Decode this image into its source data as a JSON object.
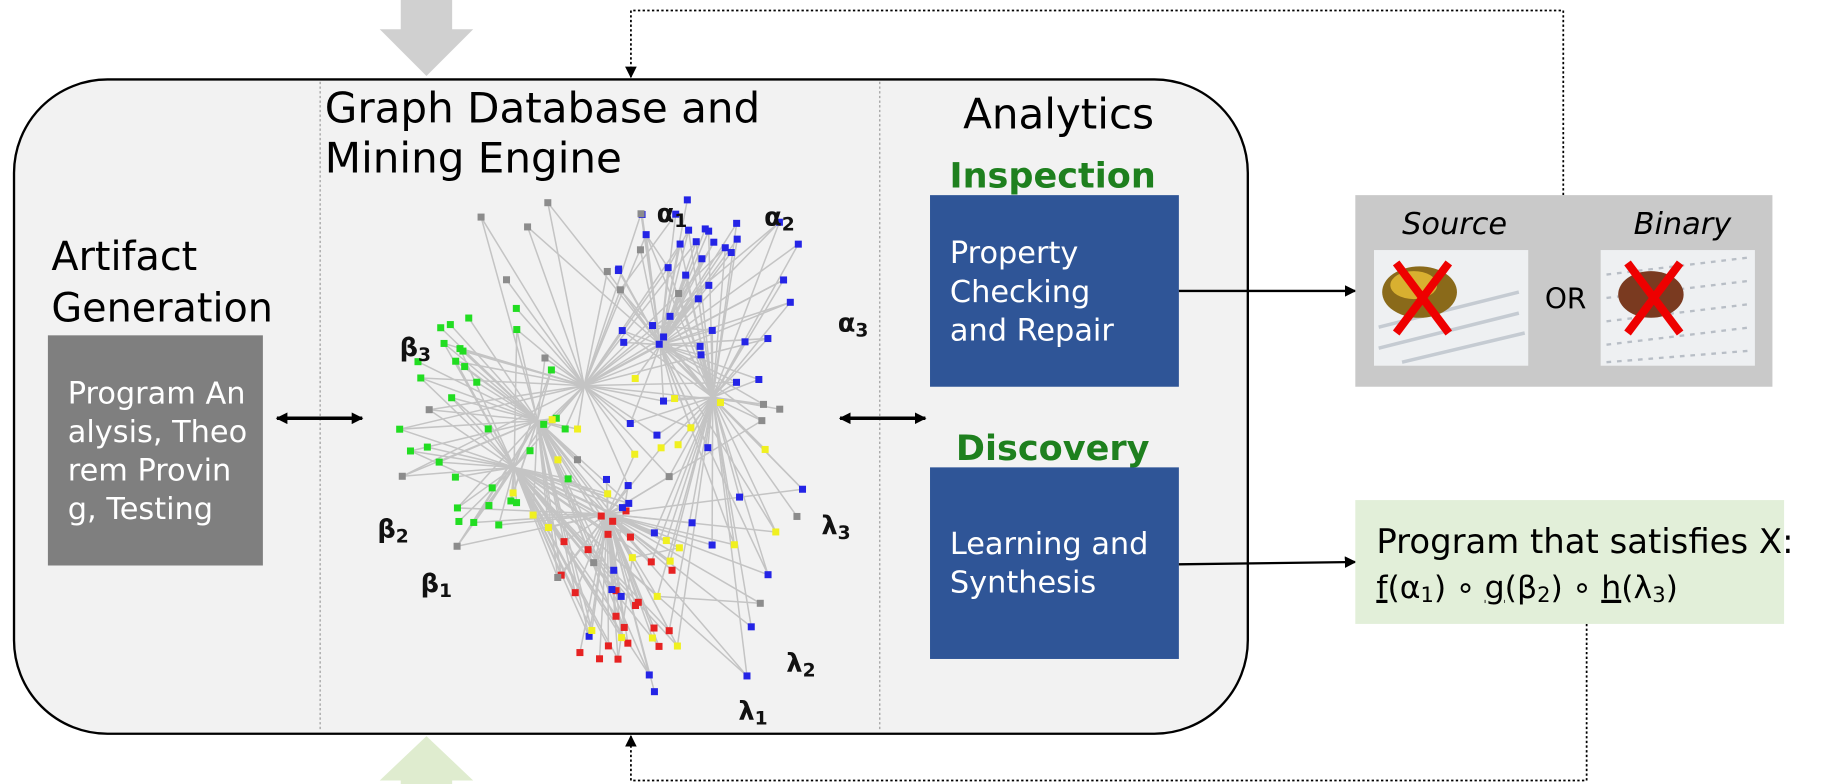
{
  "artifact_generation": {
    "title": [
      "Artifact",
      "Generation"
    ],
    "box_lines": [
      "Program An",
      "alysis, Theo",
      "rem Provin",
      "g, Testing"
    ]
  },
  "graph_engine": {
    "title": [
      "Graph Database and",
      "Mining Engine"
    ],
    "labels": [
      {
        "symbol": "α",
        "sub": "1"
      },
      {
        "symbol": "α",
        "sub": "2"
      },
      {
        "symbol": "α",
        "sub": "3"
      },
      {
        "symbol": "β",
        "sub": "3"
      },
      {
        "symbol": "β",
        "sub": "2"
      },
      {
        "symbol": "β",
        "sub": "1"
      },
      {
        "symbol": "λ",
        "sub": "3"
      },
      {
        "symbol": "λ",
        "sub": "2"
      },
      {
        "symbol": "λ",
        "sub": "1"
      }
    ]
  },
  "analytics": {
    "title": "Analytics",
    "inspection": {
      "heading": "Inspection",
      "box_lines": [
        "Property",
        "Checking",
        "and Repair"
      ]
    },
    "discovery": {
      "heading": "Discovery",
      "box_lines": [
        "Learning and",
        "Synthesis"
      ]
    }
  },
  "inspection_output": {
    "source": "Source",
    "or": "OR",
    "binary": "Binary"
  },
  "discovery_output": {
    "line1": "Program that satisfies X:",
    "formula": {
      "operator": "∘",
      "terms": [
        {
          "fn": "f",
          "arg": "(α",
          "sub": "1",
          "close": ")"
        },
        {
          "fn": "g",
          "arg": "(β",
          "sub": "2",
          "close": ")"
        },
        {
          "fn": "h",
          "arg": "(λ",
          "sub": "3",
          "close": ")"
        }
      ]
    }
  }
}
